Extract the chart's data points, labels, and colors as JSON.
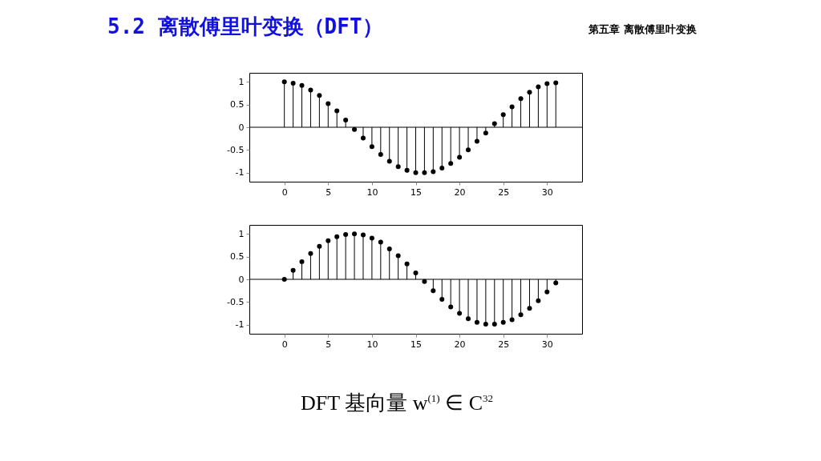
{
  "chart_data": [
    {
      "type": "lollipop",
      "title": "5.2 离散傅里叶变换（DFT）",
      "annotations": [
        "第五章 离散傅里叶变换"
      ],
      "x": [
        0,
        1,
        2,
        3,
        4,
        5,
        6,
        7,
        8,
        9,
        10,
        11,
        12,
        13,
        14,
        15,
        16,
        17,
        18,
        19,
        20,
        21,
        22,
        23,
        24,
        25,
        26,
        27,
        28,
        29,
        30,
        31
      ],
      "series": [
        {
          "color": "#000000",
          "values": [
            1.0,
            0.97,
            0.92,
            0.82,
            0.7,
            0.52,
            0.36,
            0.16,
            -0.05,
            -0.24,
            -0.43,
            -0.6,
            -0.75,
            -0.87,
            -0.95,
            -1.0,
            -1.0,
            -0.98,
            -0.9,
            -0.8,
            -0.66,
            -0.5,
            -0.31,
            -0.13,
            0.08,
            0.28,
            0.45,
            0.63,
            0.77,
            0.89,
            0.96,
            0.98
          ]
        }
      ],
      "xlim": [
        -4,
        34
      ],
      "xticks": [
        0,
        5,
        10,
        15,
        20,
        25,
        30
      ],
      "ylim": [
        -1.2,
        1.2
      ],
      "yticks": [
        -1,
        -0.5,
        0,
        0.5,
        1
      ],
      "marker": "circle"
    },
    {
      "type": "lollipop",
      "annotations": [
        "DFT 基向量 w$^{(1)}$ ∈ C$^{32}$"
      ],
      "x": [
        0,
        1,
        2,
        3,
        4,
        5,
        6,
        7,
        8,
        9,
        10,
        11,
        12,
        13,
        14,
        15,
        16,
        17,
        18,
        19,
        20,
        21,
        22,
        23,
        24,
        25,
        26,
        27,
        28,
        29,
        30,
        31
      ],
      "series": [
        {
          "color": "#000000",
          "values": [
            0.0,
            0.2,
            0.39,
            0.57,
            0.73,
            0.85,
            0.94,
            0.99,
            1.0,
            0.98,
            0.91,
            0.82,
            0.67,
            0.52,
            0.34,
            0.14,
            -0.05,
            -0.25,
            -0.44,
            -0.61,
            -0.75,
            -0.87,
            -0.95,
            -0.99,
            -0.99,
            -0.95,
            -0.89,
            -0.78,
            -0.64,
            -0.47,
            -0.28,
            -0.08
          ]
        }
      ],
      "xlim": [
        -4,
        34
      ],
      "xticks": [
        0,
        5,
        10,
        15,
        20,
        25,
        30
      ],
      "ylim": [
        -1.2,
        1.2
      ],
      "yticks": [
        -1,
        -0.5,
        0,
        0.5,
        1
      ],
      "marker": "circle"
    }
  ]
}
